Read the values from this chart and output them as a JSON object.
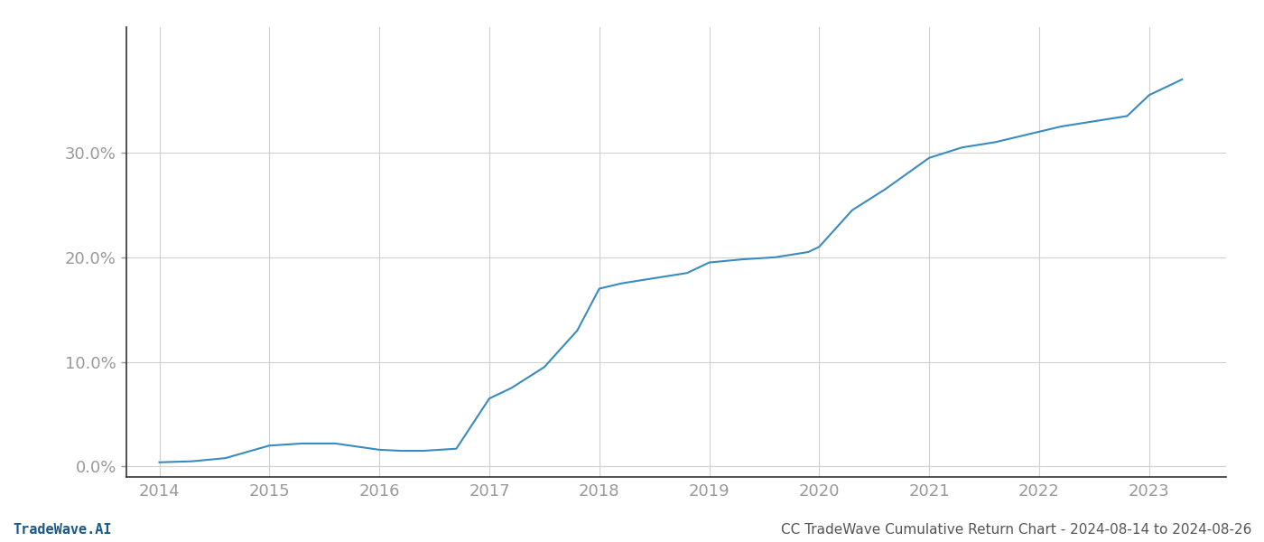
{
  "x_years": [
    2014,
    2014.3,
    2014.6,
    2015,
    2015.3,
    2015.6,
    2016,
    2016.2,
    2016.4,
    2016.7,
    2017,
    2017.2,
    2017.5,
    2017.8,
    2018,
    2018.2,
    2018.5,
    2018.8,
    2019,
    2019.3,
    2019.6,
    2019.9,
    2020,
    2020.3,
    2020.6,
    2021,
    2021.3,
    2021.6,
    2022,
    2022.2,
    2022.5,
    2022.8,
    2023,
    2023.3
  ],
  "y_values": [
    0.004,
    0.005,
    0.008,
    0.02,
    0.022,
    0.022,
    0.016,
    0.015,
    0.015,
    0.017,
    0.065,
    0.075,
    0.095,
    0.13,
    0.17,
    0.175,
    0.18,
    0.185,
    0.195,
    0.198,
    0.2,
    0.205,
    0.21,
    0.245,
    0.265,
    0.295,
    0.305,
    0.31,
    0.32,
    0.325,
    0.33,
    0.335,
    0.355,
    0.37
  ],
  "line_color": "#3a8bbf",
  "line_width": 1.5,
  "background_color": "#ffffff",
  "grid_color": "#d0d0d0",
  "tick_color": "#999999",
  "label_color": "#555555",
  "footer_left": "TradeWave.AI",
  "footer_right": "CC TradeWave Cumulative Return Chart - 2024-08-14 to 2024-08-26",
  "footer_fontsize": 11,
  "ytick_labels": [
    "0.0%",
    "10.0%",
    "20.0%",
    "30.0%"
  ],
  "ytick_values": [
    0.0,
    0.1,
    0.2,
    0.3
  ],
  "xtick_labels": [
    "2014",
    "2015",
    "2016",
    "2017",
    "2018",
    "2019",
    "2020",
    "2021",
    "2022",
    "2023"
  ],
  "xtick_values": [
    2014,
    2015,
    2016,
    2017,
    2018,
    2019,
    2020,
    2021,
    2022,
    2023
  ],
  "xlim": [
    2013.7,
    2023.7
  ],
  "ylim": [
    -0.01,
    0.42
  ]
}
